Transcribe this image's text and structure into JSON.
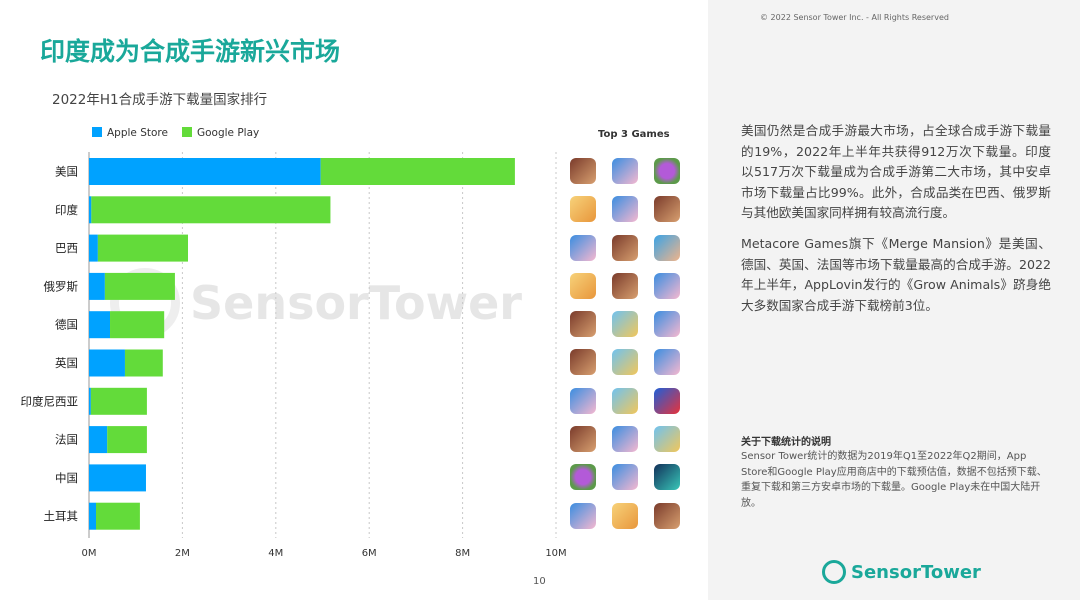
{
  "title": "印度成为合成手游新兴市场",
  "copyright": "© 2022 Sensor Tower Inc. - All Rights Reserved",
  "watermark": "SensorTower",
  "logo": "SensorTower",
  "page_number": "10",
  "top3_label": "Top 3 Games",
  "colors": {
    "apple": "#00a2ff",
    "google": "#63db3a",
    "accent": "#1aa89a"
  },
  "chart_data": {
    "type": "bar",
    "orientation": "horizontal",
    "stacked": true,
    "title": "2022年H1合成手游下载量国家排行",
    "categories": [
      "美国",
      "印度",
      "巴西",
      "俄罗斯",
      "德国",
      "英国",
      "印度尼西亚",
      "法国",
      "中国",
      "土耳其"
    ],
    "series": [
      {
        "name": "Apple Store",
        "color": "#00a2ff",
        "values": [
          4.96,
          0.05,
          0.19,
          0.34,
          0.45,
          0.77,
          0.04,
          0.39,
          1.22,
          0.15
        ]
      },
      {
        "name": "Google Play",
        "color": "#63db3a",
        "values": [
          4.16,
          5.12,
          1.93,
          1.5,
          1.16,
          0.81,
          1.2,
          0.85,
          0,
          0.94
        ]
      }
    ],
    "xlim": [
      0,
      10
    ],
    "xticks": [
      "0M",
      "2M",
      "4M",
      "6M",
      "8M",
      "10M"
    ],
    "grid": "vertical dashed",
    "legend": "top-left"
  },
  "top3_games": [
    [
      "mansion",
      "grow",
      "egg"
    ],
    [
      "cat",
      "grow",
      "mansion"
    ],
    [
      "grow",
      "mansion",
      "boy"
    ],
    [
      "cat",
      "mansion",
      "grow"
    ],
    [
      "mansion",
      "girl",
      "grow"
    ],
    [
      "mansion",
      "girl",
      "grow"
    ],
    [
      "grow",
      "girl",
      "car"
    ],
    [
      "mansion",
      "grow",
      "girl"
    ],
    [
      "egg",
      "grow",
      "puzzle"
    ],
    [
      "grow",
      "cat",
      "mansion"
    ]
  ],
  "paragraphs": [
    "美国仍然是合成手游最大市场，占全球合成手游下载量的19%，2022年上半年共获得912万次下载量。印度以517万次下载量成为合成手游第二大市场，其中安卓市场下载量占比99%。此外，合成品类在巴西、俄罗斯与其他欧美国家同样拥有较高流行度。",
    "Metacore Games旗下《Merge Mansion》是美国、德国、英国、法国等市场下载量最高的合成手游。2022年上半年，AppLovin发行的《Grow Animals》跻身绝大多数国家合成手游下载榜前3位。"
  ],
  "note": {
    "heading": "关于下载统计的说明",
    "text": "Sensor Tower统计的数据为2019年Q1至2022年Q2期间，App Store和Google Play应用商店中的下载预估值，数据不包括预下载、重复下载和第三方安卓市场的下载量。Google Play未在中国大陆开放。"
  }
}
